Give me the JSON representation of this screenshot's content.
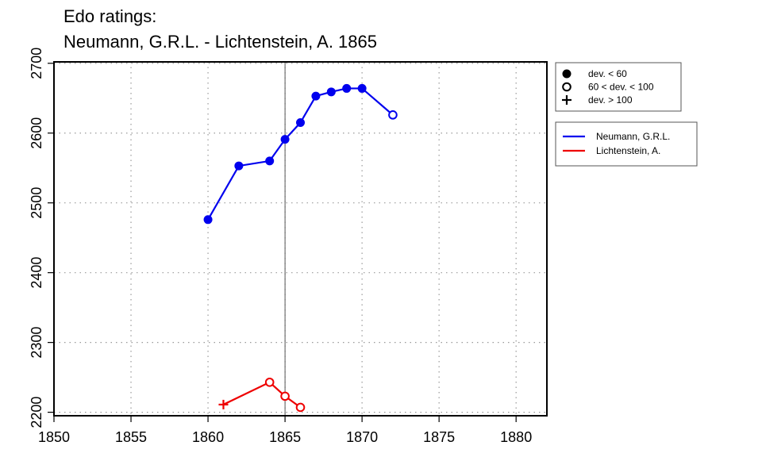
{
  "header": {
    "line1": "Edo ratings:",
    "line2": "Neumann, G.R.L. - Lichtenstein, A. 1865"
  },
  "chart_data": {
    "type": "line",
    "title": "Edo ratings:\nNeumann, G.R.L. - Lichtenstein, A. 1865",
    "xlabel": "",
    "ylabel": "",
    "xlim": [
      1850,
      1882
    ],
    "ylim": [
      2195,
      2702
    ],
    "x_ticks": [
      1850,
      1855,
      1860,
      1865,
      1870,
      1875,
      1880
    ],
    "y_ticks": [
      2200,
      2300,
      2400,
      2500,
      2600,
      2700
    ],
    "grid": true,
    "reference_line_x": 1865,
    "series": [
      {
        "name": "Neumann, G.R.L.",
        "color": "#0000ee",
        "points": [
          {
            "x": 1860,
            "y": 2476,
            "marker": "filled"
          },
          {
            "x": 1862,
            "y": 2553,
            "marker": "filled"
          },
          {
            "x": 1864,
            "y": 2560,
            "marker": "filled"
          },
          {
            "x": 1865,
            "y": 2591,
            "marker": "filled"
          },
          {
            "x": 1866,
            "y": 2615,
            "marker": "filled"
          },
          {
            "x": 1867,
            "y": 2653,
            "marker": "filled"
          },
          {
            "x": 1868,
            "y": 2659,
            "marker": "filled"
          },
          {
            "x": 1869,
            "y": 2664,
            "marker": "filled"
          },
          {
            "x": 1870,
            "y": 2664,
            "marker": "filled"
          },
          {
            "x": 1872,
            "y": 2626,
            "marker": "open"
          }
        ]
      },
      {
        "name": "Lichtenstein, A.",
        "color": "#ee0000",
        "points": [
          {
            "x": 1861,
            "y": 2211,
            "marker": "plus"
          },
          {
            "x": 1864,
            "y": 2243,
            "marker": "open"
          },
          {
            "x": 1865,
            "y": 2223,
            "marker": "open"
          },
          {
            "x": 1866,
            "y": 2207,
            "marker": "open"
          }
        ]
      }
    ],
    "marker_legend": [
      {
        "marker": "filled",
        "label": "dev. < 60"
      },
      {
        "marker": "open",
        "label": "60 < dev. < 100"
      },
      {
        "marker": "plus",
        "label": "dev. > 100"
      }
    ],
    "legend_position": "right"
  }
}
